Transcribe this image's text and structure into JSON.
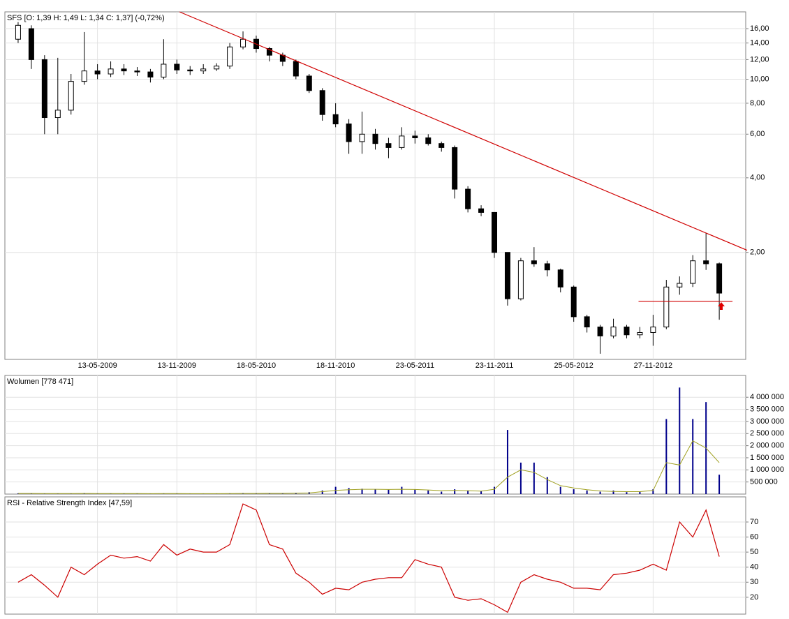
{
  "chart_data": [
    {
      "type": "candlestick",
      "title": "SFS [O: 1,39  H: 1,49  L: 1,34  C: 1,37] (-0,72%)",
      "categories": [
        null,
        null,
        null,
        null,
        null,
        null,
        "13-05-2009",
        null,
        null,
        null,
        null,
        null,
        "13-11-2009",
        null,
        null,
        null,
        null,
        null,
        "18-05-2010",
        null,
        null,
        null,
        null,
        null,
        "18-11-2010",
        null,
        null,
        null,
        null,
        null,
        "23-05-2011",
        null,
        null,
        null,
        null,
        null,
        "23-11-2011",
        null,
        null,
        null,
        null,
        null,
        "25-05-2012",
        null,
        null,
        null,
        null,
        null,
        "27-11-2012",
        null,
        null,
        null,
        null,
        null
      ],
      "open": [
        14.5,
        16.0,
        12.0,
        7.0,
        7.5,
        9.8,
        10.8,
        10.5,
        11.0,
        10.8,
        10.7,
        10.2,
        11.5,
        10.9,
        10.8,
        11.0,
        11.3,
        13.5,
        14.5,
        13.3,
        12.5,
        11.8,
        10.3,
        9.0,
        7.2,
        6.6,
        5.6,
        6.0,
        5.5,
        5.3,
        5.9,
        5.8,
        5.5,
        5.3,
        3.6,
        3.0,
        2.9,
        2.0,
        1.3,
        1.85,
        1.8,
        1.7,
        1.45,
        1.1,
        1.0,
        0.92,
        1.0,
        0.93,
        0.95,
        1.0,
        1.45,
        1.5,
        1.85,
        1.8
      ],
      "high": [
        17.0,
        16.5,
        12.5,
        12.2,
        10.5,
        15.5,
        11.5,
        11.8,
        11.5,
        11.2,
        11.0,
        14.5,
        12.0,
        11.3,
        11.5,
        11.6,
        14.0,
        15.6,
        15.0,
        13.5,
        12.8,
        12.0,
        10.5,
        9.2,
        8.0,
        6.9,
        7.4,
        6.3,
        5.8,
        6.4,
        6.2,
        6.0,
        5.6,
        5.4,
        3.7,
        3.1,
        2.9,
        2.0,
        1.9,
        2.1,
        1.85,
        1.72,
        1.47,
        1.12,
        1.02,
        1.08,
        1.02,
        1.0,
        1.12,
        1.55,
        1.6,
        1.95,
        2.4,
        1.82
      ],
      "low": [
        14.0,
        11.0,
        6.0,
        6.0,
        7.2,
        9.5,
        10.0,
        10.2,
        10.4,
        10.3,
        9.7,
        10.0,
        10.5,
        10.4,
        10.5,
        10.8,
        11.0,
        13.2,
        12.8,
        11.8,
        11.3,
        10.0,
        8.8,
        6.8,
        6.4,
        5.0,
        5.0,
        5.2,
        4.8,
        5.2,
        5.5,
        5.4,
        5.1,
        3.3,
        2.9,
        2.8,
        1.9,
        1.22,
        1.28,
        1.75,
        1.6,
        1.38,
        1.05,
        0.95,
        0.78,
        0.9,
        0.9,
        0.9,
        0.84,
        0.98,
        1.35,
        1.45,
        1.7,
        1.07
      ],
      "close": [
        16.5,
        12.0,
        7.0,
        7.5,
        9.8,
        10.8,
        10.5,
        11.0,
        10.8,
        10.7,
        10.2,
        11.5,
        10.9,
        10.8,
        11.0,
        11.3,
        13.5,
        14.5,
        13.3,
        12.5,
        11.8,
        10.3,
        9.0,
        7.2,
        6.6,
        5.6,
        6.0,
        5.5,
        5.3,
        5.9,
        5.8,
        5.5,
        5.3,
        3.6,
        3.0,
        2.9,
        2.0,
        1.3,
        1.85,
        1.8,
        1.7,
        1.45,
        1.1,
        1.0,
        0.92,
        1.0,
        0.93,
        0.95,
        1.0,
        1.45,
        1.5,
        1.85,
        1.8,
        1.37
      ],
      "ylim": [
        0.74,
        18.7
      ],
      "log_scale": true,
      "grid": true,
      "yticks": [
        {
          "value": 16,
          "label": "16,00"
        },
        {
          "value": 14,
          "label": "14,00"
        },
        {
          "value": 12,
          "label": "12,00"
        },
        {
          "value": 10,
          "label": "10,00"
        },
        {
          "value": 8,
          "label": "8,00"
        },
        {
          "value": 6,
          "label": "6,00"
        },
        {
          "value": 4,
          "label": "4,00"
        },
        {
          "value": 2,
          "label": "2,00"
        }
      ],
      "lines": [
        {
          "color": "#d00000",
          "x": [
            12.2,
            55.1
          ],
          "y": [
            18.7,
            2.04
          ]
        },
        {
          "color": "#d00000",
          "x": [
            46.9,
            54
          ],
          "y": [
            1.27,
            1.27
          ]
        }
      ]
    },
    {
      "type": "bar",
      "title": "Wolumen [778 471]",
      "values": [
        30000,
        20000,
        20000,
        25000,
        20000,
        40000,
        20000,
        15000,
        15000,
        20000,
        15000,
        30000,
        15000,
        15000,
        15000,
        15000,
        30000,
        40000,
        30000,
        30000,
        40000,
        50000,
        80000,
        150000,
        300000,
        250000,
        220000,
        200000,
        180000,
        300000,
        200000,
        150000,
        100000,
        200000,
        150000,
        120000,
        300000,
        2650000,
        1300000,
        1300000,
        700000,
        300000,
        200000,
        150000,
        100000,
        150000,
        80000,
        100000,
        200000,
        3100000,
        4400000,
        3100000,
        3800000,
        800000
      ],
      "ma_values": [
        25000,
        25000,
        24000,
        23000,
        22000,
        25000,
        24000,
        22000,
        20000,
        19000,
        18000,
        20000,
        19000,
        18000,
        17000,
        17000,
        20000,
        25000,
        27000,
        28000,
        30000,
        35000,
        45000,
        100000,
        150000,
        180000,
        200000,
        200000,
        190000,
        200000,
        190000,
        170000,
        140000,
        150000,
        140000,
        120000,
        200000,
        700000,
        1000000,
        900000,
        600000,
        350000,
        250000,
        180000,
        130000,
        110000,
        100000,
        100000,
        150000,
        1300000,
        1200000,
        2200000,
        1900000,
        1300000
      ],
      "color": "#00008b",
      "ma_color": "#a0a020",
      "ylim": [
        0,
        4900000
      ],
      "grid": true,
      "yticks": [
        {
          "value": 4000000,
          "label": "4 000 000"
        },
        {
          "value": 3500000,
          "label": "3 500 000"
        },
        {
          "value": 3000000,
          "label": "3 000 000"
        },
        {
          "value": 2500000,
          "label": "2 500 000"
        },
        {
          "value": 2000000,
          "label": "2 000 000"
        },
        {
          "value": 1500000,
          "label": "1 500 000"
        },
        {
          "value": 1000000,
          "label": "1 000 000"
        },
        {
          "value": 500000,
          "label": "500 000"
        }
      ]
    },
    {
      "type": "line",
      "title": "RSI - Relative Strength Index [47,59]",
      "values": [
        30,
        35,
        28,
        20,
        40,
        35,
        42,
        48,
        46,
        47,
        44,
        55,
        48,
        52,
        50,
        50,
        55,
        82,
        78,
        55,
        52,
        36,
        30,
        22,
        26,
        25,
        30,
        32,
        33,
        33,
        45,
        42,
        40,
        20,
        18,
        19,
        15,
        10,
        30,
        35,
        32,
        30,
        26,
        26,
        25,
        35,
        36,
        38,
        42,
        38,
        70,
        60,
        78,
        47
      ],
      "color": "#cc0000",
      "ylim": [
        8.8,
        86.7
      ],
      "grid": true,
      "yticks": [
        70,
        60,
        50,
        40,
        30,
        20
      ]
    }
  ]
}
